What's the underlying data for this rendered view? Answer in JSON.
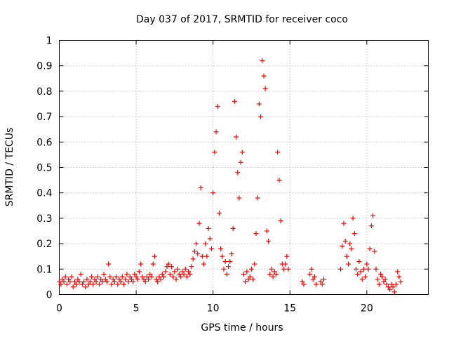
{
  "chart_data": {
    "type": "scatter",
    "title": "Day 037 of 2017, SRMTID for receiver coco",
    "xlabel": "GPS time / hours",
    "ylabel": "SRMTID / TECUs",
    "xlim": [
      0,
      24
    ],
    "ylim": [
      0,
      1
    ],
    "xticks": [
      0,
      5,
      10,
      15,
      20
    ],
    "xtick_labels": [
      "0",
      "5",
      "10",
      "15",
      "20"
    ],
    "yticks": [
      0,
      0.1,
      0.2,
      0.3,
      0.4,
      0.5,
      0.6,
      0.7,
      0.8,
      0.9,
      1
    ],
    "ytick_labels": [
      "0",
      "0.1",
      "0.2",
      "0.3",
      "0.4",
      "0.5",
      "0.6",
      "0.7",
      "0.8",
      "0.9",
      "1"
    ],
    "grid": true,
    "marker": "+",
    "series": [
      {
        "name": "SRMTID",
        "color": "#ff0000",
        "points": [
          [
            0.0,
            0.05
          ],
          [
            0.1,
            0.04
          ],
          [
            0.2,
            0.06
          ],
          [
            0.3,
            0.05
          ],
          [
            0.4,
            0.07
          ],
          [
            0.5,
            0.04
          ],
          [
            0.6,
            0.06
          ],
          [
            0.7,
            0.05
          ],
          [
            0.8,
            0.07
          ],
          [
            0.9,
            0.03
          ],
          [
            1.0,
            0.05
          ],
          [
            1.1,
            0.04
          ],
          [
            1.2,
            0.06
          ],
          [
            1.3,
            0.05
          ],
          [
            1.4,
            0.08
          ],
          [
            1.5,
            0.04
          ],
          [
            1.6,
            0.05
          ],
          [
            1.7,
            0.03
          ],
          [
            1.8,
            0.06
          ],
          [
            1.9,
            0.04
          ],
          [
            2.0,
            0.05
          ],
          [
            2.1,
            0.07
          ],
          [
            2.2,
            0.04
          ],
          [
            2.3,
            0.06
          ],
          [
            2.4,
            0.05
          ],
          [
            2.5,
            0.07
          ],
          [
            2.6,
            0.04
          ],
          [
            2.7,
            0.06
          ],
          [
            2.8,
            0.05
          ],
          [
            2.9,
            0.08
          ],
          [
            3.0,
            0.06
          ],
          [
            3.1,
            0.05
          ],
          [
            3.2,
            0.12
          ],
          [
            3.3,
            0.07
          ],
          [
            3.4,
            0.04
          ],
          [
            3.5,
            0.06
          ],
          [
            3.6,
            0.05
          ],
          [
            3.7,
            0.07
          ],
          [
            3.8,
            0.04
          ],
          [
            3.9,
            0.06
          ],
          [
            4.0,
            0.05
          ],
          [
            4.1,
            0.07
          ],
          [
            4.2,
            0.04
          ],
          [
            4.3,
            0.06
          ],
          [
            4.4,
            0.08
          ],
          [
            4.5,
            0.05
          ],
          [
            4.6,
            0.07
          ],
          [
            4.7,
            0.06
          ],
          [
            4.8,
            0.05
          ],
          [
            4.9,
            0.08
          ],
          [
            5.0,
            0.07
          ],
          [
            5.1,
            0.06
          ],
          [
            5.2,
            0.09
          ],
          [
            5.3,
            0.12
          ],
          [
            5.4,
            0.07
          ],
          [
            5.5,
            0.06
          ],
          [
            5.6,
            0.05
          ],
          [
            5.7,
            0.07
          ],
          [
            5.8,
            0.06
          ],
          [
            5.9,
            0.08
          ],
          [
            6.0,
            0.07
          ],
          [
            6.1,
            0.12
          ],
          [
            6.2,
            0.15
          ],
          [
            6.3,
            0.06
          ],
          [
            6.4,
            0.05
          ],
          [
            6.5,
            0.07
          ],
          [
            6.6,
            0.06
          ],
          [
            6.7,
            0.08
          ],
          [
            6.8,
            0.07
          ],
          [
            6.9,
            0.09
          ],
          [
            7.0,
            0.11
          ],
          [
            7.1,
            0.12
          ],
          [
            7.2,
            0.08
          ],
          [
            7.3,
            0.11
          ],
          [
            7.4,
            0.07
          ],
          [
            7.5,
            0.09
          ],
          [
            7.6,
            0.06
          ],
          [
            7.7,
            0.1
          ],
          [
            7.8,
            0.08
          ],
          [
            7.9,
            0.07
          ],
          [
            8.0,
            0.09
          ],
          [
            8.1,
            0.08
          ],
          [
            8.2,
            0.1
          ],
          [
            8.3,
            0.07
          ],
          [
            8.4,
            0.09
          ],
          [
            8.5,
            0.08
          ],
          [
            8.6,
            0.11
          ],
          [
            8.7,
            0.14
          ],
          [
            8.8,
            0.17
          ],
          [
            8.9,
            0.2
          ],
          [
            9.0,
            0.16
          ],
          [
            9.1,
            0.28
          ],
          [
            9.2,
            0.42
          ],
          [
            9.3,
            0.15
          ],
          [
            9.4,
            0.12
          ],
          [
            9.5,
            0.2
          ],
          [
            9.6,
            0.15
          ],
          [
            9.7,
            0.26
          ],
          [
            9.8,
            0.22
          ],
          [
            9.9,
            0.18
          ],
          [
            10.0,
            0.4
          ],
          [
            10.1,
            0.56
          ],
          [
            10.2,
            0.64
          ],
          [
            10.3,
            0.74
          ],
          [
            10.4,
            0.32
          ],
          [
            10.5,
            0.18
          ],
          [
            10.6,
            0.15
          ],
          [
            10.7,
            0.1
          ],
          [
            10.8,
            0.13
          ],
          [
            10.9,
            0.08
          ],
          [
            11.0,
            0.11
          ],
          [
            11.1,
            0.13
          ],
          [
            11.2,
            0.16
          ],
          [
            11.3,
            0.26
          ],
          [
            11.4,
            0.76
          ],
          [
            11.5,
            0.62
          ],
          [
            11.6,
            0.48
          ],
          [
            11.7,
            0.38
          ],
          [
            11.8,
            0.52
          ],
          [
            11.9,
            0.56
          ],
          [
            12.0,
            0.08
          ],
          [
            12.1,
            0.05
          ],
          [
            12.2,
            0.09
          ],
          [
            12.3,
            0.06
          ],
          [
            12.4,
            0.07
          ],
          [
            12.5,
            0.1
          ],
          [
            12.6,
            0.06
          ],
          [
            12.7,
            0.12
          ],
          [
            12.8,
            0.24
          ],
          [
            12.9,
            0.38
          ],
          [
            13.0,
            0.75
          ],
          [
            13.1,
            0.7
          ],
          [
            13.2,
            0.92
          ],
          [
            13.3,
            0.86
          ],
          [
            13.4,
            0.81
          ],
          [
            13.5,
            0.25
          ],
          [
            13.6,
            0.21
          ],
          [
            13.7,
            0.08
          ],
          [
            13.8,
            0.1
          ],
          [
            13.9,
            0.07
          ],
          [
            14.0,
            0.09
          ],
          [
            14.1,
            0.08
          ],
          [
            14.2,
            0.56
          ],
          [
            14.3,
            0.45
          ],
          [
            14.4,
            0.29
          ],
          [
            14.5,
            0.12
          ],
          [
            14.6,
            0.1
          ],
          [
            14.7,
            0.12
          ],
          [
            14.8,
            0.15
          ],
          [
            14.9,
            0.1
          ],
          [
            15.8,
            0.05
          ],
          [
            15.9,
            0.04
          ],
          [
            16.3,
            0.08
          ],
          [
            16.4,
            0.1
          ],
          [
            16.5,
            0.06
          ],
          [
            16.6,
            0.07
          ],
          [
            16.7,
            0.04
          ],
          [
            17.0,
            0.05
          ],
          [
            17.1,
            0.04
          ],
          [
            17.2,
            0.06
          ],
          [
            18.3,
            0.1
          ],
          [
            18.4,
            0.19
          ],
          [
            18.5,
            0.28
          ],
          [
            18.6,
            0.21
          ],
          [
            18.7,
            0.15
          ],
          [
            18.8,
            0.12
          ],
          [
            18.9,
            0.2
          ],
          [
            19.0,
            0.18
          ],
          [
            19.1,
            0.3
          ],
          [
            19.2,
            0.24
          ],
          [
            19.3,
            0.1
          ],
          [
            19.4,
            0.08
          ],
          [
            19.5,
            0.13
          ],
          [
            19.6,
            0.09
          ],
          [
            19.7,
            0.06
          ],
          [
            19.8,
            0.1
          ],
          [
            19.9,
            0.07
          ],
          [
            20.0,
            0.12
          ],
          [
            20.1,
            0.1
          ],
          [
            20.2,
            0.18
          ],
          [
            20.3,
            0.27
          ],
          [
            20.4,
            0.31
          ],
          [
            20.5,
            0.17
          ],
          [
            20.6,
            0.1
          ],
          [
            20.7,
            0.06
          ],
          [
            20.8,
            0.04
          ],
          [
            20.9,
            0.08
          ],
          [
            21.0,
            0.07
          ],
          [
            21.1,
            0.05
          ],
          [
            21.2,
            0.06
          ],
          [
            21.3,
            0.04
          ],
          [
            21.4,
            0.03
          ],
          [
            21.5,
            0.02
          ],
          [
            21.6,
            0.04
          ],
          [
            21.7,
            0.03
          ],
          [
            21.8,
            0.01
          ],
          [
            21.9,
            0.04
          ],
          [
            22.0,
            0.09
          ],
          [
            22.1,
            0.07
          ],
          [
            22.2,
            0.05
          ]
        ]
      }
    ]
  }
}
